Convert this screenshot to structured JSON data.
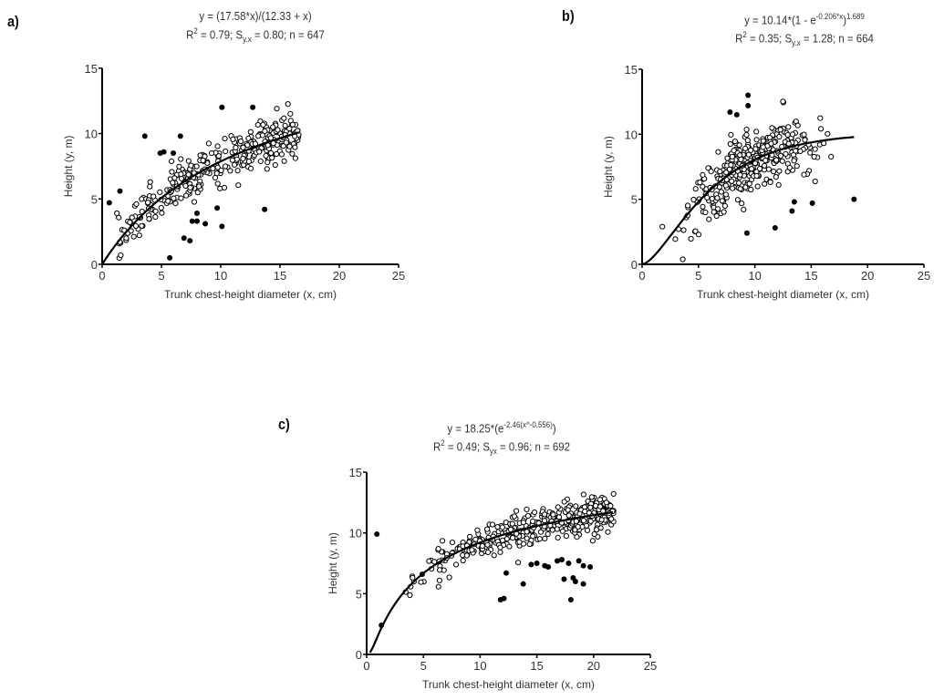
{
  "chart_data": [
    {
      "panel": "a)",
      "type": "scatter",
      "title_line1": "y = (17.58*x)/(12.33 + x)",
      "title_line2": {
        "r2": "R",
        "r2_sup": "2",
        "r2_val": " = 0.79; S",
        "syx_sub": "y.x",
        "rest": " = 0.80; n = 647"
      },
      "model": {
        "form": "michaelis-menten",
        "a": 17.58,
        "b": 12.33,
        "x_range": [
          0,
          16.6
        ]
      },
      "stats": {
        "R2": 0.79,
        "Syx": 0.8,
        "n": 647
      },
      "xlabel": "Trunk chest-height diameter (x, cm)",
      "ylabel": "Height (y, m)",
      "xlim": [
        0,
        25
      ],
      "ylim": [
        0,
        15
      ],
      "xticks": [
        0,
        5,
        10,
        15,
        20,
        25
      ],
      "yticks": [
        0,
        5,
        10,
        15
      ],
      "open_cloud": {
        "x_min": 1.2,
        "x_max": 16.6,
        "spread": 1.2,
        "count": 330
      },
      "filled_outliers": [
        [
          0.6,
          4.7
        ],
        [
          1.5,
          5.6
        ],
        [
          3.6,
          9.8
        ],
        [
          4.9,
          8.5
        ],
        [
          5.2,
          8.6
        ],
        [
          6.6,
          9.8
        ],
        [
          6.0,
          8.5
        ],
        [
          10.1,
          12.0
        ],
        [
          12.7,
          12.0
        ],
        [
          5.7,
          0.5
        ],
        [
          6.9,
          2.0
        ],
        [
          7.4,
          1.8
        ],
        [
          7.6,
          3.3
        ],
        [
          8.0,
          3.3
        ],
        [
          8.0,
          3.9
        ],
        [
          8.7,
          3.1
        ],
        [
          9.7,
          4.3
        ],
        [
          10.1,
          2.9
        ],
        [
          13.7,
          4.2
        ]
      ]
    },
    {
      "panel": "b)",
      "type": "scatter",
      "title_line1": "y = 10.14*(1 - e",
      "title_line1_sup": "-0.206*x",
      "title_line1_end": ")",
      "title_line1_sup2": "1.689",
      "title_line2": {
        "r2": "R",
        "r2_sup": "2",
        "r2_val": " = 0.35; S",
        "syx_sub": "y.x",
        "rest": " = 1.28; n = 664"
      },
      "model": {
        "form": "chapman-richards",
        "a": 10.14,
        "k": 0.206,
        "p": 1.689,
        "x_range": [
          0,
          18.8
        ]
      },
      "stats": {
        "R2": 0.35,
        "Syx": 1.28,
        "n": 664
      },
      "xlabel": "Trunk chest-height diameter (x, cm)",
      "ylabel": "Height (y, m)",
      "xlim": [
        0,
        25
      ],
      "ylim": [
        0,
        15
      ],
      "xticks": [
        0,
        5,
        10,
        15,
        20,
        25
      ],
      "yticks": [
        0,
        5,
        10,
        15
      ],
      "open_cloud": {
        "x_min": 1.8,
        "x_max": 18.0,
        "spread": 1.7,
        "count": 360
      },
      "filled_outliers": [
        [
          9.4,
          13.0
        ],
        [
          9.4,
          12.2
        ],
        [
          7.8,
          11.7
        ],
        [
          8.4,
          11.5
        ],
        [
          9.3,
          2.4
        ],
        [
          11.8,
          2.8
        ],
        [
          13.3,
          4.1
        ],
        [
          13.5,
          4.8
        ],
        [
          15.1,
          4.7
        ],
        [
          18.8,
          5.0
        ]
      ]
    },
    {
      "panel": "c)",
      "type": "scatter",
      "title_line1": "y = 18.25*(e",
      "title_line1_sup": "-2.46(x^-0.556)",
      "title_line1_end": ")",
      "title_line2": {
        "r2": "R",
        "r2_sup": "2",
        "r2_val": " = 0.49; S",
        "syx_sub": "yx",
        "rest": " = 0.96; n = 692"
      },
      "model": {
        "form": "gompertz-power",
        "a": 18.25,
        "b": 2.46,
        "c": 0.556,
        "x_range": [
          0.3,
          21.7
        ]
      },
      "stats": {
        "R2": 0.49,
        "Syx": 0.96,
        "n": 692
      },
      "xlabel": "Trunk chest-height diameter (x, cm)",
      "ylabel": "Height (y, m)",
      "xlim": [
        0,
        25
      ],
      "ylim": [
        0,
        15
      ],
      "xticks": [
        0,
        5,
        10,
        15,
        20,
        25
      ],
      "yticks": [
        0,
        5,
        10,
        15
      ],
      "open_cloud": {
        "x_min": 3.0,
        "x_max": 21.8,
        "spread": 1.0,
        "count": 380
      },
      "filled_outliers": [
        [
          0.9,
          9.9
        ],
        [
          1.3,
          2.4
        ],
        [
          4.9,
          6.6
        ],
        [
          11.8,
          4.5
        ],
        [
          12.1,
          4.6
        ],
        [
          12.3,
          6.7
        ],
        [
          13.8,
          5.8
        ],
        [
          14.5,
          7.4
        ],
        [
          15.0,
          7.5
        ],
        [
          15.7,
          7.3
        ],
        [
          16.0,
          7.2
        ],
        [
          16.8,
          7.7
        ],
        [
          17.2,
          7.8
        ],
        [
          17.4,
          6.2
        ],
        [
          17.8,
          7.5
        ],
        [
          18.2,
          6.3
        ],
        [
          18.4,
          6.0
        ],
        [
          18.0,
          4.5
        ],
        [
          18.7,
          7.7
        ],
        [
          19.1,
          5.8
        ],
        [
          19.1,
          7.3
        ],
        [
          19.7,
          7.2
        ]
      ]
    }
  ]
}
